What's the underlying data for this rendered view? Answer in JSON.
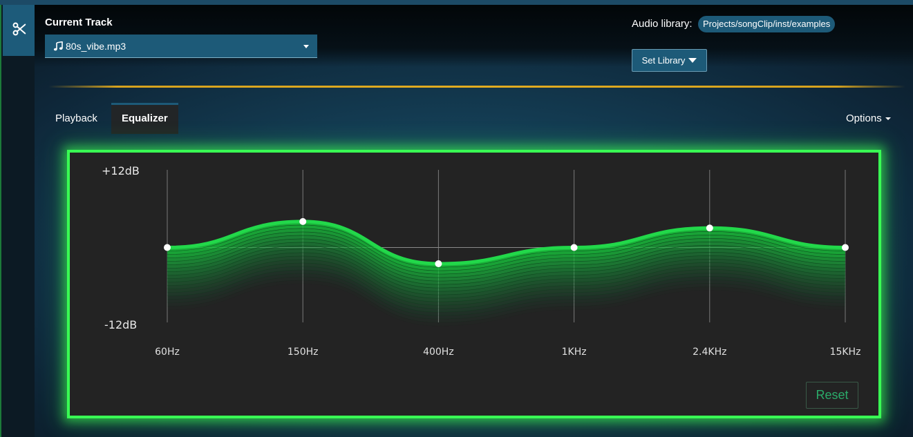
{
  "sidebar": {
    "tool_icon": "scissors-icon"
  },
  "header": {
    "current_track_label": "Current Track",
    "track_value": "80s_vibe.mp3",
    "track_icon": "music-note-icon",
    "library_label": "Audio library:",
    "library_path": "Projects/songClip/inst/examples",
    "set_library_label": "Set Library"
  },
  "tabs": [
    {
      "label": "Playback",
      "active": false
    },
    {
      "label": "Equalizer",
      "active": true
    }
  ],
  "options_label": "Options",
  "equalizer": {
    "max_label": "+12dB",
    "min_label": "-12dB",
    "range_db": [
      -12,
      12
    ],
    "bands": [
      {
        "label": "60Hz",
        "gain_db": 0
      },
      {
        "label": "150Hz",
        "gain_db": 4
      },
      {
        "label": "400Hz",
        "gain_db": -2.5
      },
      {
        "label": "1KHz",
        "gain_db": 0
      },
      {
        "label": "2.4KHz",
        "gain_db": 3
      },
      {
        "label": "15KHz",
        "gain_db": 0
      }
    ],
    "reset_label": "Reset"
  },
  "colors": {
    "accent_green": "#39ff54",
    "curve_green": "#22d84a",
    "panel_bg": "#232323",
    "control_blue": "#1d5a78",
    "divider_gold": "#e2ac20",
    "reset_text": "#2bab6a"
  }
}
